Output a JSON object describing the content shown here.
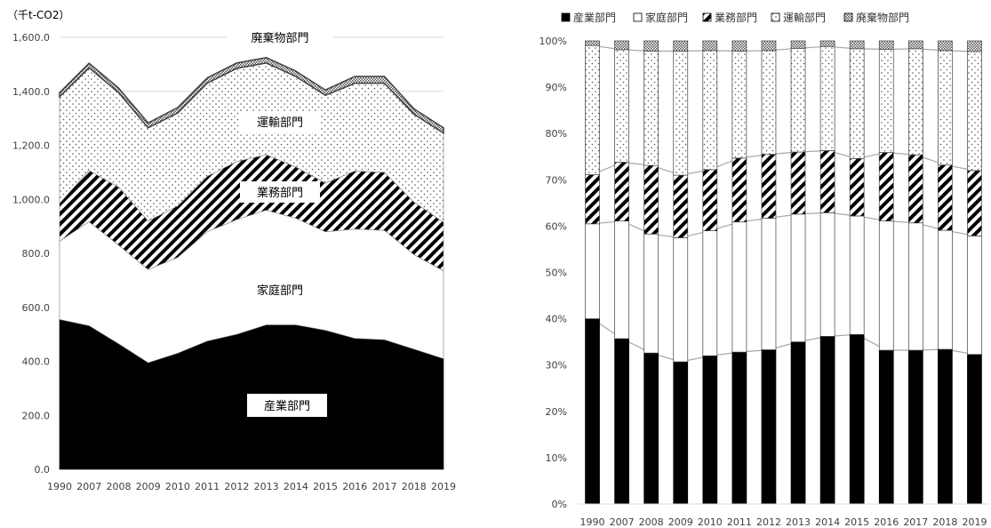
{
  "chart_data": [
    {
      "type": "area",
      "stacked": true,
      "unit_label": "（千t-CO2）",
      "categories": [
        "1990",
        "2007",
        "2008",
        "2009",
        "2010",
        "2011",
        "2012",
        "2013",
        "2014",
        "2015",
        "2016",
        "2017",
        "2018",
        "2019"
      ],
      "ylim": [
        0,
        1600
      ],
      "yticks": [
        "0.0",
        "200.0",
        "400.0",
        "600.0",
        "800.0",
        "1,000.0",
        "1,200.0",
        "1,400.0",
        "1,600.0"
      ],
      "grid": true,
      "series": [
        {
          "name": "産業部門",
          "values": [
            555,
            532,
            465,
            395,
            430,
            475,
            500,
            535,
            535,
            515,
            485,
            480,
            445,
            410
          ]
        },
        {
          "name": "家庭部門",
          "values": [
            290,
            385,
            365,
            345,
            355,
            405,
            425,
            425,
            395,
            365,
            405,
            405,
            350,
            325
          ]
        },
        {
          "name": "業務部門",
          "values": [
            140,
            190,
            215,
            180,
            190,
            205,
            215,
            205,
            190,
            180,
            215,
            215,
            195,
            180
          ]
        },
        {
          "name": "運輸部門",
          "values": [
            395,
            380,
            350,
            345,
            345,
            345,
            345,
            340,
            335,
            325,
            325,
            330,
            325,
            330
          ]
        },
        {
          "name": "廃棄物部門",
          "values": [
            15,
            17,
            17,
            18,
            20,
            20,
            20,
            20,
            20,
            20,
            25,
            25,
            20,
            20
          ]
        }
      ],
      "annotations": [
        "廃棄物部門",
        "運輸部門",
        "業務部門",
        "家庭部門",
        "産業部門"
      ]
    },
    {
      "type": "bar",
      "stacked": true,
      "percent": true,
      "categories": [
        "1990",
        "2007",
        "2008",
        "2009",
        "2010",
        "2011",
        "2012",
        "2013",
        "2014",
        "2015",
        "2016",
        "2017",
        "2018",
        "2019"
      ],
      "ylim": [
        0,
        100
      ],
      "yticks": [
        "0%",
        "10%",
        "20%",
        "30%",
        "40%",
        "50%",
        "60%",
        "70%",
        "80%",
        "90%",
        "100%"
      ],
      "legend_position": "top",
      "series": [
        {
          "name": "産業部門",
          "values": [
            40.0,
            35.7,
            32.6,
            30.7,
            32.0,
            32.8,
            33.3,
            35.0,
            36.2,
            36.6,
            33.2,
            33.2,
            33.4,
            32.3
          ]
        },
        {
          "name": "家庭部門",
          "values": [
            20.5,
            25.4,
            25.7,
            26.8,
            27.0,
            28.1,
            28.4,
            27.6,
            26.7,
            25.6,
            27.9,
            27.5,
            25.7,
            25.6
          ]
        },
        {
          "name": "業務部門",
          "values": [
            10.6,
            12.7,
            14.8,
            13.5,
            13.2,
            13.8,
            13.8,
            13.4,
            13.4,
            12.4,
            14.8,
            14.7,
            14.1,
            14.1
          ]
        },
        {
          "name": "運輸部門",
          "values": [
            27.9,
            24.3,
            24.7,
            26.8,
            25.7,
            23.1,
            22.4,
            22.4,
            22.5,
            23.7,
            22.3,
            22.9,
            24.7,
            25.7
          ]
        },
        {
          "name": "廃棄物部門",
          "values": [
            1.0,
            1.9,
            2.2,
            2.2,
            2.1,
            2.2,
            2.1,
            1.6,
            1.2,
            1.7,
            1.8,
            1.7,
            2.1,
            2.3
          ]
        }
      ]
    }
  ],
  "colors": {
    "industry": "#000000",
    "household": "#ffffff",
    "business_stripe": "#000000",
    "transport_dot": "#666666",
    "waste_check": "#555555",
    "grid": "#d9d9d9",
    "connector": "#a6a6a6"
  }
}
